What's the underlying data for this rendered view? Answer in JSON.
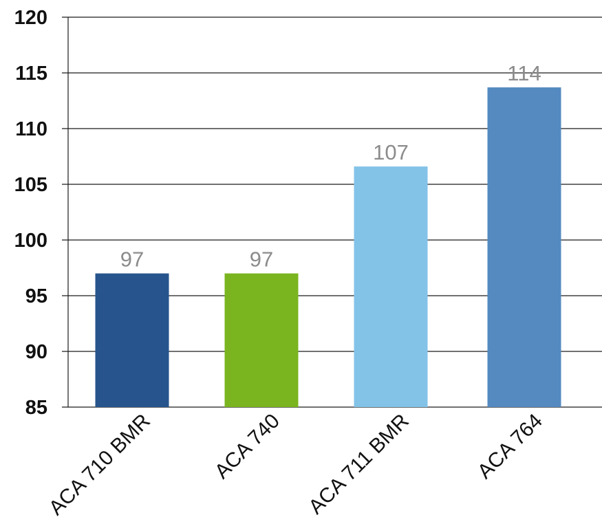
{
  "chart_data": {
    "type": "bar",
    "title": "",
    "xlabel": "",
    "ylabel": "",
    "categories": [
      "ACA 710 BMR",
      "ACA 740",
      "ACA 711 BMR",
      "ACA 764"
    ],
    "values": [
      97,
      97,
      106.6,
      113.7
    ],
    "data_labels": [
      "97",
      "97",
      "107",
      "114"
    ],
    "bar_colors": [
      "#27548c",
      "#7ab51f",
      "#83c3e8",
      "#548ac0"
    ],
    "ylim": [
      85,
      120
    ],
    "yticks": [
      85,
      90,
      95,
      100,
      105,
      110,
      115,
      120
    ],
    "ytick_labels": [
      "85",
      "90",
      "95",
      "100",
      "105",
      "110",
      "115",
      "120"
    ],
    "grid": true,
    "legend": "none",
    "x_tick_rotation": "-45"
  }
}
